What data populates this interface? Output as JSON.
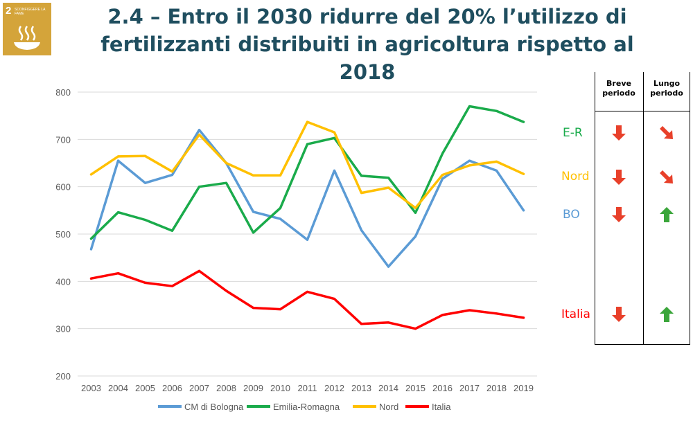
{
  "logo": {
    "number": "2",
    "text": "SCONFIGGERE LA FAME",
    "icon": "bowl-icon",
    "color": "#d4a43a"
  },
  "title": {
    "line1": "2.4 – Entro il 2030 ridurre del 20% l’utilizzo di",
    "line2": "fertilizzanti distribuiti in agricoltura rispetto al 2018"
  },
  "chart_data": {
    "type": "line",
    "title": "",
    "xlabel": "",
    "ylabel": "",
    "x": [
      "2003",
      "2004",
      "2005",
      "2006",
      "2007",
      "2008",
      "2009",
      "2010",
      "2011",
      "2012",
      "2013",
      "2014",
      "2015",
      "2016",
      "2017",
      "2018",
      "2019"
    ],
    "ylim": [
      200,
      800
    ],
    "yticks": [
      "200",
      "300",
      "400",
      "500",
      "600",
      "700",
      "800"
    ],
    "grid": true,
    "legend_position": "bottom",
    "series": [
      {
        "name": "CM di Bologna",
        "color": "#5b9bd5",
        "values": [
          468,
          655,
          608,
          625,
          720,
          650,
          547,
          532,
          488,
          634,
          508,
          431,
          495,
          617,
          655,
          634,
          550
        ]
      },
      {
        "name": "Emilia-Romagna",
        "color": "#1aab4b",
        "values": [
          490,
          546,
          530,
          507,
          600,
          608,
          503,
          555,
          690,
          703,
          623,
          619,
          545,
          670,
          770,
          760,
          737
        ]
      },
      {
        "name": "Nord",
        "color": "#ffc000",
        "values": [
          626,
          664,
          665,
          632,
          710,
          650,
          624,
          624,
          737,
          715,
          587,
          598,
          555,
          625,
          645,
          653,
          627
        ]
      },
      {
        "name": "Italia",
        "color": "#ff0000",
        "values": [
          406,
          417,
          397,
          390,
          422,
          380,
          344,
          341,
          378,
          363,
          310,
          313,
          300,
          329,
          339,
          332,
          323
        ]
      }
    ]
  },
  "regions": [
    {
      "label": "E-R",
      "color": "#1aab4b"
    },
    {
      "label": "Nord",
      "color": "#ffc000"
    },
    {
      "label": "BO",
      "color": "#5b9bd5"
    },
    {
      "label": "Italia",
      "color": "#ff0000"
    }
  ],
  "period_table": {
    "headers": [
      [
        "Breve",
        "periodo"
      ],
      [
        "Lungo",
        "periodo"
      ]
    ],
    "rows": [
      {
        "short": "red-down-arrow-icon",
        "long": "red-down-right-arrow-icon"
      },
      {
        "short": "red-down-arrow-icon",
        "long": "red-down-right-arrow-icon"
      },
      {
        "short": "red-down-arrow-icon",
        "long": "green-up-arrow-icon"
      },
      {
        "short": "red-down-arrow-icon",
        "long": "green-up-arrow-icon"
      }
    ],
    "colors": {
      "down": "#e8402a",
      "up": "#3aa63a"
    }
  }
}
